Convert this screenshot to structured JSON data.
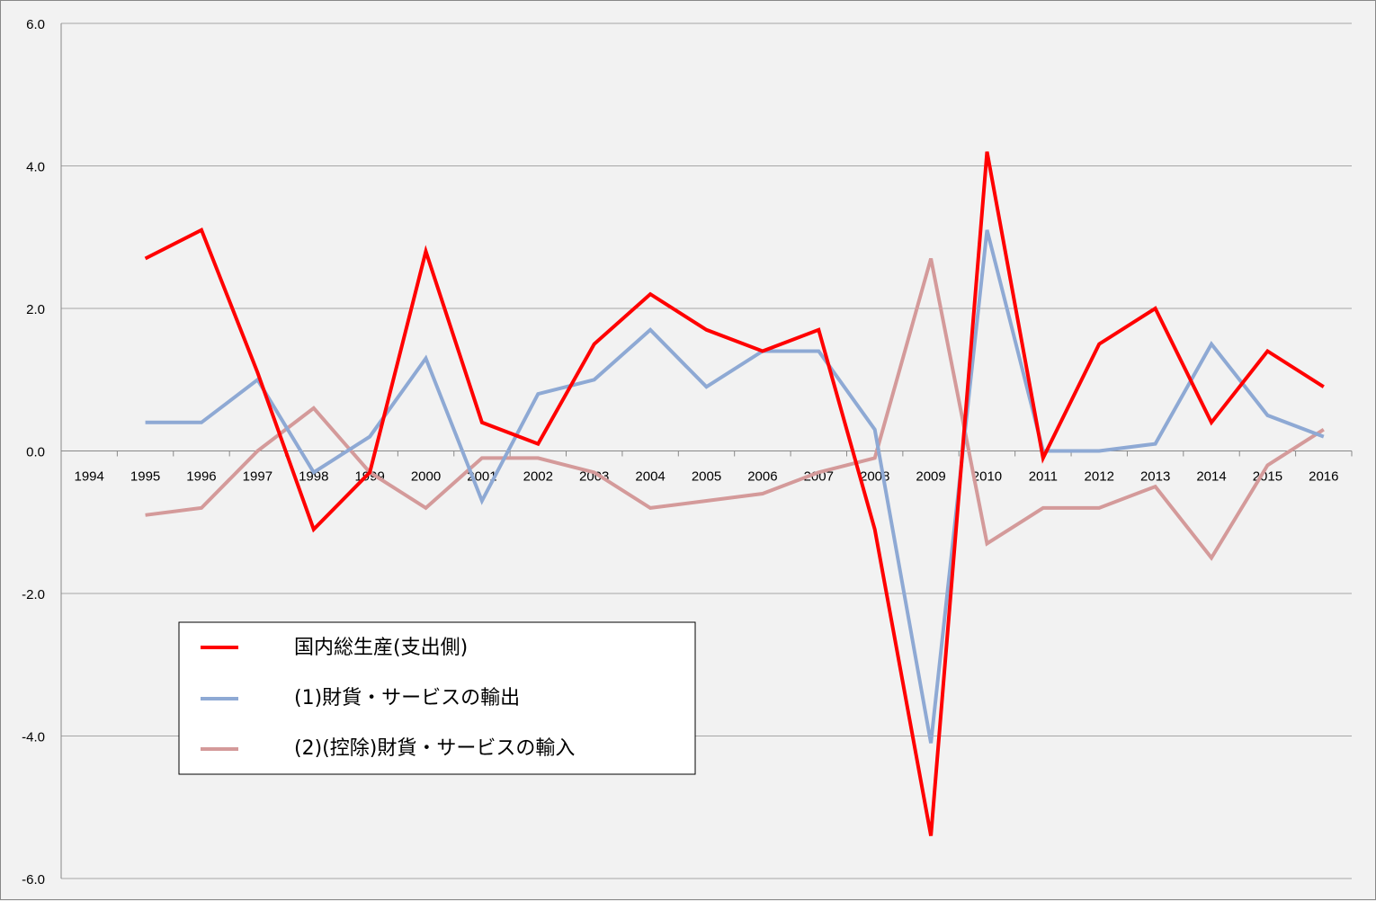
{
  "chart_data": {
    "type": "line",
    "title": "",
    "xlabel": "",
    "ylabel": "",
    "ylim": [
      -6.0,
      6.0
    ],
    "y_ticks": [
      "6.0",
      "4.0",
      "2.0",
      "0.0",
      "-2.0",
      "-4.0",
      "-6.0"
    ],
    "y_tick_values": [
      6,
      4,
      2,
      0,
      -2,
      -4,
      -6
    ],
    "categories": [
      "1994",
      "1995",
      "1996",
      "1997",
      "1998",
      "1999",
      "2000",
      "2001",
      "2002",
      "2003",
      "2004",
      "2005",
      "2006",
      "2007",
      "2008",
      "2009",
      "2010",
      "2011",
      "2012",
      "2013",
      "2014",
      "2015",
      "2016"
    ],
    "grid": true,
    "legend_position": "bottom-left",
    "series": [
      {
        "name": "国内総生産(支出側)",
        "color": "#ff0000",
        "values": [
          null,
          2.7,
          3.1,
          1.1,
          -1.1,
          -0.3,
          2.8,
          0.4,
          0.1,
          1.5,
          2.2,
          1.7,
          1.4,
          1.7,
          -1.1,
          -5.4,
          4.2,
          -0.1,
          1.5,
          2.0,
          0.4,
          1.4,
          0.9
        ]
      },
      {
        "name": "(1)財貨・サービスの輸出",
        "color": "#8ea9d4",
        "values": [
          null,
          0.4,
          0.4,
          1.0,
          -0.3,
          0.2,
          1.3,
          -0.7,
          0.8,
          1.0,
          1.7,
          0.9,
          1.4,
          1.4,
          0.3,
          -4.1,
          3.1,
          0.0,
          0.0,
          0.1,
          1.5,
          0.5,
          0.2
        ]
      },
      {
        "name": "(2)(控除)財貨・サービスの輸入",
        "color": "#d49a9a",
        "values": [
          null,
          -0.9,
          -0.8,
          0.0,
          0.6,
          -0.3,
          -0.8,
          -0.1,
          -0.1,
          -0.3,
          -0.8,
          -0.7,
          -0.6,
          -0.3,
          -0.1,
          2.7,
          -1.3,
          -0.8,
          -0.8,
          -0.5,
          -1.5,
          -0.2,
          0.3
        ]
      }
    ]
  }
}
